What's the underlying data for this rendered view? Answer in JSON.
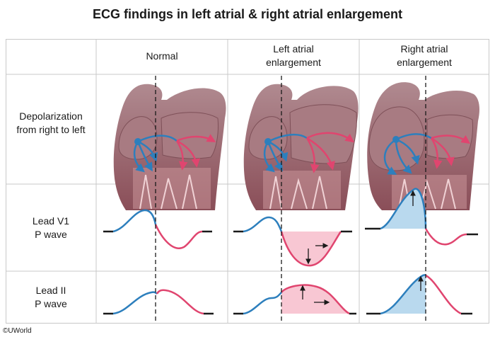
{
  "title": "ECG findings in left atrial & right atrial enlargement",
  "columns": [
    "Normal",
    "Left atrial enlargement",
    "Right atrial enlargement"
  ],
  "column_lines": [
    [
      "Normal"
    ],
    [
      "Left atrial",
      "enlargement"
    ],
    [
      "Right atrial",
      "enlargement"
    ]
  ],
  "rows": {
    "depolarization": [
      "Depolarization",
      "from right to left"
    ],
    "lead_v1": [
      "Lead V1",
      "P wave"
    ],
    "lead_ii": [
      "Lead II",
      "P wave"
    ]
  },
  "copyright": "©UWorld",
  "colors": {
    "right_atrium": "#2d7fbd",
    "left_atrium": "#e0456f",
    "ra_fill": "#b9d9ee",
    "la_fill": "#f8c7d3",
    "grid_line": "#c8c8c8",
    "heart_tissue": "#8c5f66"
  }
}
